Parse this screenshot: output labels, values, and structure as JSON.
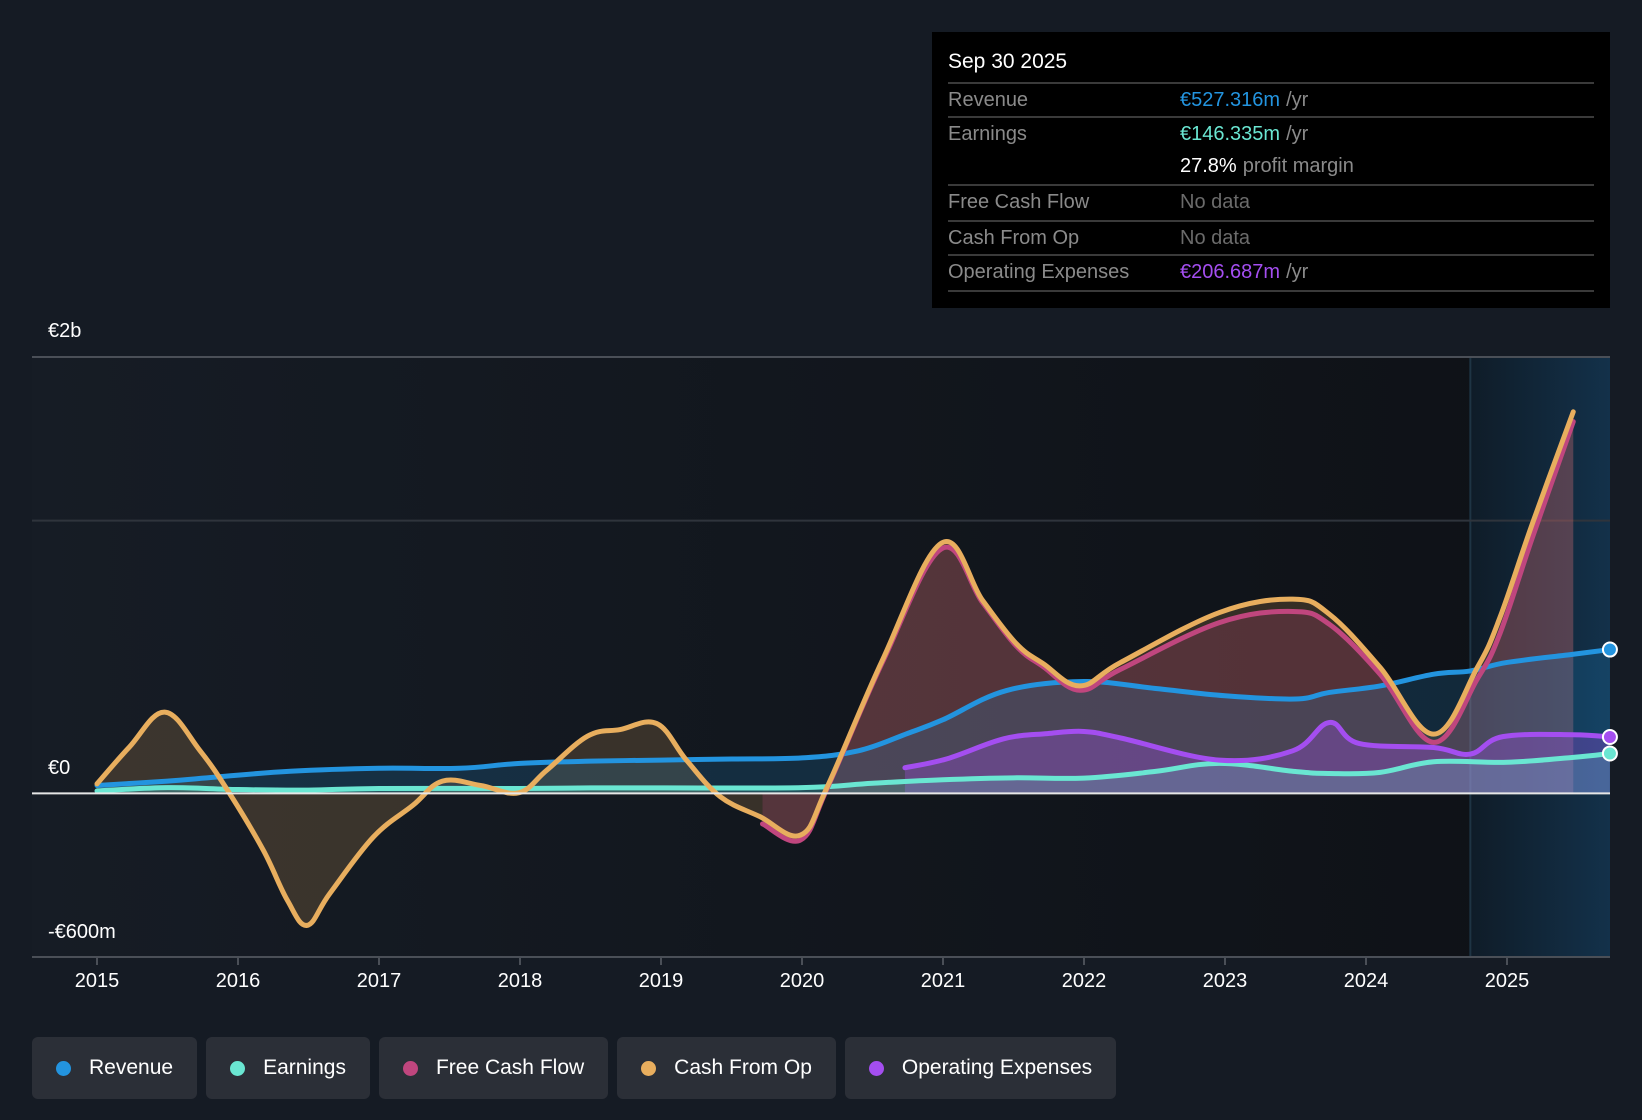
{
  "tooltip": {
    "date": "Sep 30 2025",
    "rows": [
      {
        "label": "Revenue",
        "value": "€527.316m",
        "unit": "/yr",
        "color": "#2394df"
      },
      {
        "label": "Earnings",
        "value": "€146.335m",
        "unit": "/yr",
        "color": "#6ae6d2"
      },
      {
        "label": "",
        "value": "27.8%",
        "unit": "profit margin",
        "color": "#ffffff"
      },
      {
        "label": "Free Cash Flow",
        "value": "No data",
        "unit": "",
        "color": "#6b6b6b"
      },
      {
        "label": "Cash From Op",
        "value": "No data",
        "unit": "",
        "color": "#6b6b6b"
      },
      {
        "label": "Operating Expenses",
        "value": "€206.687m",
        "unit": "/yr",
        "color": "#a44ef0"
      }
    ]
  },
  "legend": [
    {
      "label": "Revenue",
      "color": "#2394df"
    },
    {
      "label": "Earnings",
      "color": "#6ae6d2"
    },
    {
      "label": "Free Cash Flow",
      "color": "#c0467e"
    },
    {
      "label": "Cash From Op",
      "color": "#e8ae5e"
    },
    {
      "label": "Operating Expenses",
      "color": "#a44ef0"
    }
  ],
  "chart_data": {
    "type": "line",
    "title": "",
    "xlabel": "",
    "ylabel": "",
    "currency": "EUR (millions)",
    "ylim": [
      -600,
      1600
    ],
    "xlim": [
      2014.55,
      2025.73
    ],
    "y_tick_labels": [
      {
        "value": 1600,
        "label": "€2b"
      },
      {
        "value": 0,
        "label": "€0"
      },
      {
        "value": -600,
        "label": "-€600m"
      }
    ],
    "gridlines": [
      1600,
      1000,
      0,
      -600
    ],
    "x_ticks": [
      2015,
      2016,
      2017,
      2018,
      2019,
      2020,
      2021,
      2022,
      2023,
      2024,
      2025
    ],
    "forecast_shading_start": 2024.74,
    "legend_position": "bottom-left",
    "series": [
      {
        "name": "Revenue",
        "color": "#2394df",
        "points": [
          [
            2015,
            29
          ],
          [
            2015.5,
            45
          ],
          [
            2015.85,
            60
          ],
          [
            2016.37,
            81
          ],
          [
            2017,
            92
          ],
          [
            2017.57,
            92
          ],
          [
            2018,
            110
          ],
          [
            2018.5,
            118
          ],
          [
            2019,
            122
          ],
          [
            2019.5,
            126
          ],
          [
            2020,
            130
          ],
          [
            2020.4,
            156
          ],
          [
            2020.75,
            220
          ],
          [
            2021,
            270
          ],
          [
            2021.45,
            377
          ],
          [
            2022,
            410
          ],
          [
            2022.5,
            385
          ],
          [
            2023,
            358
          ],
          [
            2023.5,
            346
          ],
          [
            2023.74,
            370
          ],
          [
            2024.1,
            394
          ],
          [
            2024.48,
            437
          ],
          [
            2024.74,
            449
          ],
          [
            2025,
            480
          ],
          [
            2025.47,
            510
          ],
          [
            2025.73,
            527.3
          ]
        ]
      },
      {
        "name": "Earnings",
        "color": "#6ae6d2",
        "points": [
          [
            2015,
            9
          ],
          [
            2015.5,
            21
          ],
          [
            2016,
            14
          ],
          [
            2016.5,
            12
          ],
          [
            2017,
            18
          ],
          [
            2018,
            18
          ],
          [
            2018.5,
            20
          ],
          [
            2019,
            20
          ],
          [
            2020,
            21
          ],
          [
            2020.5,
            37
          ],
          [
            2021,
            50
          ],
          [
            2021.5,
            57
          ],
          [
            2022,
            56
          ],
          [
            2022.5,
            80
          ],
          [
            2022.96,
            110
          ],
          [
            2023.5,
            80
          ],
          [
            2023.74,
            73
          ],
          [
            2024.1,
            77
          ],
          [
            2024.48,
            116
          ],
          [
            2025,
            114
          ],
          [
            2025.47,
            132
          ],
          [
            2025.73,
            146.3
          ]
        ]
      },
      {
        "name": "Free Cash Flow",
        "color": "#c0467e",
        "points": [
          [
            2019.72,
            -112
          ],
          [
            2019.99,
            -171
          ],
          [
            2020.18,
            20
          ],
          [
            2020.57,
            480
          ],
          [
            2020.99,
            897
          ],
          [
            2021.28,
            700
          ],
          [
            2021.52,
            540
          ],
          [
            2021.71,
            465
          ],
          [
            2021.97,
            378
          ],
          [
            2022.26,
            455
          ],
          [
            2022.96,
            626
          ],
          [
            2023.48,
            667
          ],
          [
            2023.74,
            620
          ],
          [
            2024.1,
            437
          ],
          [
            2024.48,
            187
          ],
          [
            2024.79,
            420
          ],
          [
            2024.95,
            586
          ],
          [
            2025.18,
            938
          ],
          [
            2025.47,
            1363
          ]
        ]
      },
      {
        "name": "Cash From Op",
        "color": "#e8ae5e",
        "points": [
          [
            2015,
            35
          ],
          [
            2015.23,
            170
          ],
          [
            2015.48,
            298
          ],
          [
            2015.73,
            157
          ],
          [
            2015.94,
            0
          ],
          [
            2016.18,
            -209
          ],
          [
            2016.35,
            -392
          ],
          [
            2016.49,
            -484
          ],
          [
            2016.65,
            -368
          ],
          [
            2016.96,
            -160
          ],
          [
            2017.24,
            -44
          ],
          [
            2017.45,
            45
          ],
          [
            2017.72,
            29
          ],
          [
            2017.99,
            2
          ],
          [
            2018.19,
            85
          ],
          [
            2018.48,
            210
          ],
          [
            2018.71,
            234
          ],
          [
            2018.97,
            256
          ],
          [
            2019.18,
            122
          ],
          [
            2019.42,
            -12
          ],
          [
            2019.7,
            -85
          ],
          [
            2019.99,
            -153
          ],
          [
            2020.18,
            25
          ],
          [
            2020.57,
            488
          ],
          [
            2020.99,
            918
          ],
          [
            2021.28,
            708
          ],
          [
            2021.52,
            549
          ],
          [
            2021.71,
            476
          ],
          [
            2021.97,
            394
          ],
          [
            2022.26,
            480
          ],
          [
            2022.96,
            663
          ],
          [
            2023.48,
            712
          ],
          [
            2023.74,
            657
          ],
          [
            2024.1,
            462
          ],
          [
            2024.48,
            217
          ],
          [
            2024.79,
            462
          ],
          [
            2024.95,
            645
          ],
          [
            2025.18,
            989
          ],
          [
            2025.47,
            1399
          ]
        ]
      },
      {
        "name": "Operating Expenses",
        "color": "#a44ef0",
        "points": [
          [
            2020.73,
            94
          ],
          [
            2021.03,
            127
          ],
          [
            2021.43,
            200
          ],
          [
            2021.74,
            219
          ],
          [
            2022,
            227
          ],
          [
            2022.26,
            203
          ],
          [
            2022.96,
            122
          ],
          [
            2023.48,
            156
          ],
          [
            2023.74,
            260
          ],
          [
            2023.95,
            183
          ],
          [
            2024.48,
            168
          ],
          [
            2024.74,
            144
          ],
          [
            2024.97,
            208
          ],
          [
            2025.47,
            215
          ],
          [
            2025.73,
            206.7
          ]
        ]
      }
    ]
  }
}
